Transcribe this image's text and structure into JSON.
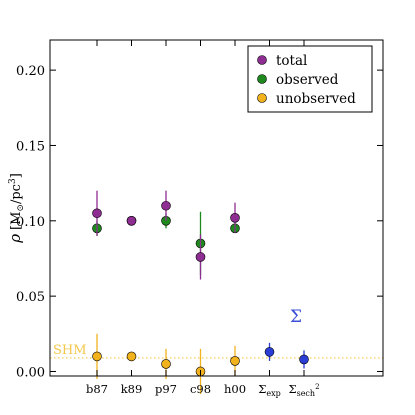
{
  "chart_data": {
    "type": "scatter",
    "ylabel": "ρ [M⊙/pc³]",
    "ylabel_parts": {
      "rho": "ρ",
      "open": "[M",
      "sun": "⊙",
      "mid": "/pc",
      "exp": "3",
      "close": "]"
    },
    "ylim": [
      -0.003,
      0.22
    ],
    "yticks": [
      0.0,
      0.05,
      0.1,
      0.15,
      0.2
    ],
    "ytick_labels": [
      "0.00",
      "0.05",
      "0.10",
      "0.15",
      "0.20"
    ],
    "grid": false,
    "categories": [
      "b87",
      "k89",
      "p97",
      "c98",
      "h00"
    ],
    "sigma_categories": [
      {
        "main": "Σ",
        "sub": "exp",
        "sup": ""
      },
      {
        "main": "Σ",
        "sub": "sech",
        "sup": "2"
      }
    ],
    "legend_position": "top-right",
    "series": [
      {
        "name": "total",
        "color": "#8e2d92",
        "points": [
          {
            "cat": "b87",
            "y": 0.105,
            "err": 0.015
          },
          {
            "cat": "k89",
            "y": 0.1,
            "err": 0.0
          },
          {
            "cat": "p97",
            "y": 0.11,
            "err": 0.01
          },
          {
            "cat": "c98",
            "y": 0.076,
            "err": 0.015
          },
          {
            "cat": "h00",
            "y": 0.102,
            "err": 0.01
          }
        ]
      },
      {
        "name": "observed",
        "color": "#1e8a1e",
        "points": [
          {
            "cat": "b87",
            "y": 0.095,
            "err": 0.005
          },
          {
            "cat": "k89",
            "y": 0.1,
            "err": 0.0
          },
          {
            "cat": "p97",
            "y": 0.1,
            "err": 0.005
          },
          {
            "cat": "c98",
            "y": 0.085,
            "err": 0.021
          },
          {
            "cat": "h00",
            "y": 0.095,
            "err": 0.0
          }
        ]
      },
      {
        "name": "unobserved",
        "color": "#f2b21c",
        "points": [
          {
            "cat": "b87",
            "y": 0.01,
            "err": 0.015
          },
          {
            "cat": "k89",
            "y": 0.01,
            "err": 0.0
          },
          {
            "cat": "p97",
            "y": 0.005,
            "err": 0.01
          },
          {
            "cat": "c98",
            "y": 0.0,
            "err": 0.015
          },
          {
            "cat": "h00",
            "y": 0.007,
            "err": 0.01
          }
        ]
      }
    ],
    "sigma_points": [
      {
        "cat_index": 5,
        "y": 0.013,
        "err": 0.006,
        "color": "#2a3ed6"
      },
      {
        "cat_index": 6,
        "y": 0.008,
        "err": 0.006,
        "color": "#2a3ed6"
      }
    ],
    "annotations": {
      "shm": {
        "text": "SHM",
        "y": 0.009,
        "color": "#f2c84b"
      },
      "sigma": {
        "text": "Σ",
        "color": "#3a4fd8"
      }
    }
  }
}
